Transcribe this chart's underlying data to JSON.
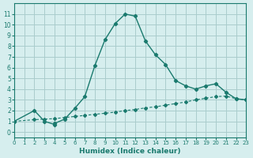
{
  "xlabel": "Humidex (Indice chaleur)",
  "bg_color": "#d6eeee",
  "grid_color": "#aacccc",
  "line_color": "#1a7a6e",
  "xlim": [
    0,
    23
  ],
  "ylim": [
    -0.5,
    12
  ],
  "yticks": [
    0,
    1,
    2,
    3,
    4,
    5,
    6,
    7,
    8,
    9,
    10,
    11
  ],
  "xticks": [
    0,
    1,
    2,
    3,
    4,
    5,
    6,
    7,
    8,
    9,
    10,
    11,
    12,
    13,
    14,
    15,
    16,
    17,
    18,
    19,
    20,
    21,
    22,
    23
  ],
  "curve1_x": [
    0,
    2,
    3,
    4,
    4,
    5,
    6,
    7,
    8,
    9,
    10,
    11,
    12,
    13,
    14,
    15,
    16,
    17,
    18,
    19,
    20,
    21,
    22,
    23
  ],
  "curve1_y": [
    1,
    2,
    1,
    0.7,
    0.8,
    1.2,
    2.2,
    3.3,
    6.2,
    8.6,
    10.1,
    11.0,
    10.8,
    8.5,
    7.2,
    6.3,
    4.8,
    4.3,
    4.0,
    4.3,
    4.5,
    3.7,
    3.1,
    3.0
  ],
  "curve2_x": [
    0,
    2,
    3,
    4,
    5,
    6,
    7,
    8,
    9,
    10,
    11,
    12,
    13,
    14,
    15,
    16,
    17,
    18,
    19,
    20,
    21,
    22,
    23
  ],
  "curve2_y": [
    1.0,
    1.15,
    1.2,
    1.25,
    1.35,
    1.45,
    1.55,
    1.65,
    1.75,
    1.85,
    2.0,
    2.1,
    2.25,
    2.35,
    2.5,
    2.65,
    2.8,
    3.0,
    3.15,
    3.3,
    3.35,
    3.1,
    3.0
  ]
}
